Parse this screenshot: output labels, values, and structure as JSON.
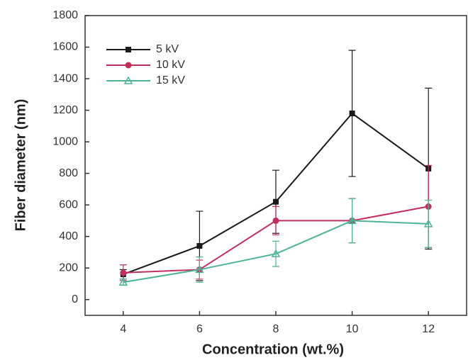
{
  "chart_data": {
    "type": "line",
    "x_label": "Concentration (wt.%)",
    "y_label": "Fiber diameter (nm)",
    "x": [
      4,
      6,
      8,
      10,
      12
    ],
    "series": [
      {
        "name": "5 kV",
        "color": "#1a1a1a",
        "marker": "square",
        "values": [
          160,
          340,
          620,
          1180,
          830
        ],
        "errors": [
          30,
          220,
          200,
          400,
          510
        ]
      },
      {
        "name": "10 kV",
        "color": "#c0305a",
        "marker": "circle",
        "values": [
          170,
          190,
          500,
          500,
          590
        ],
        "errors": [
          50,
          60,
          90,
          140,
          260
        ]
      },
      {
        "name": "15 kV",
        "color": "#4fb39a",
        "marker": "triangle",
        "values": [
          110,
          190,
          290,
          500,
          480
        ],
        "errors": [
          20,
          80,
          80,
          140,
          150
        ]
      }
    ],
    "xlim": [
      3,
      13
    ],
    "xticks": [
      4,
      6,
      8,
      10,
      12
    ],
    "ylim": [
      -100,
      1800
    ],
    "yticks": [
      0,
      200,
      400,
      600,
      800,
      1000,
      1200,
      1400,
      1600,
      1800
    ],
    "grid": false,
    "legend": "upper-left"
  }
}
